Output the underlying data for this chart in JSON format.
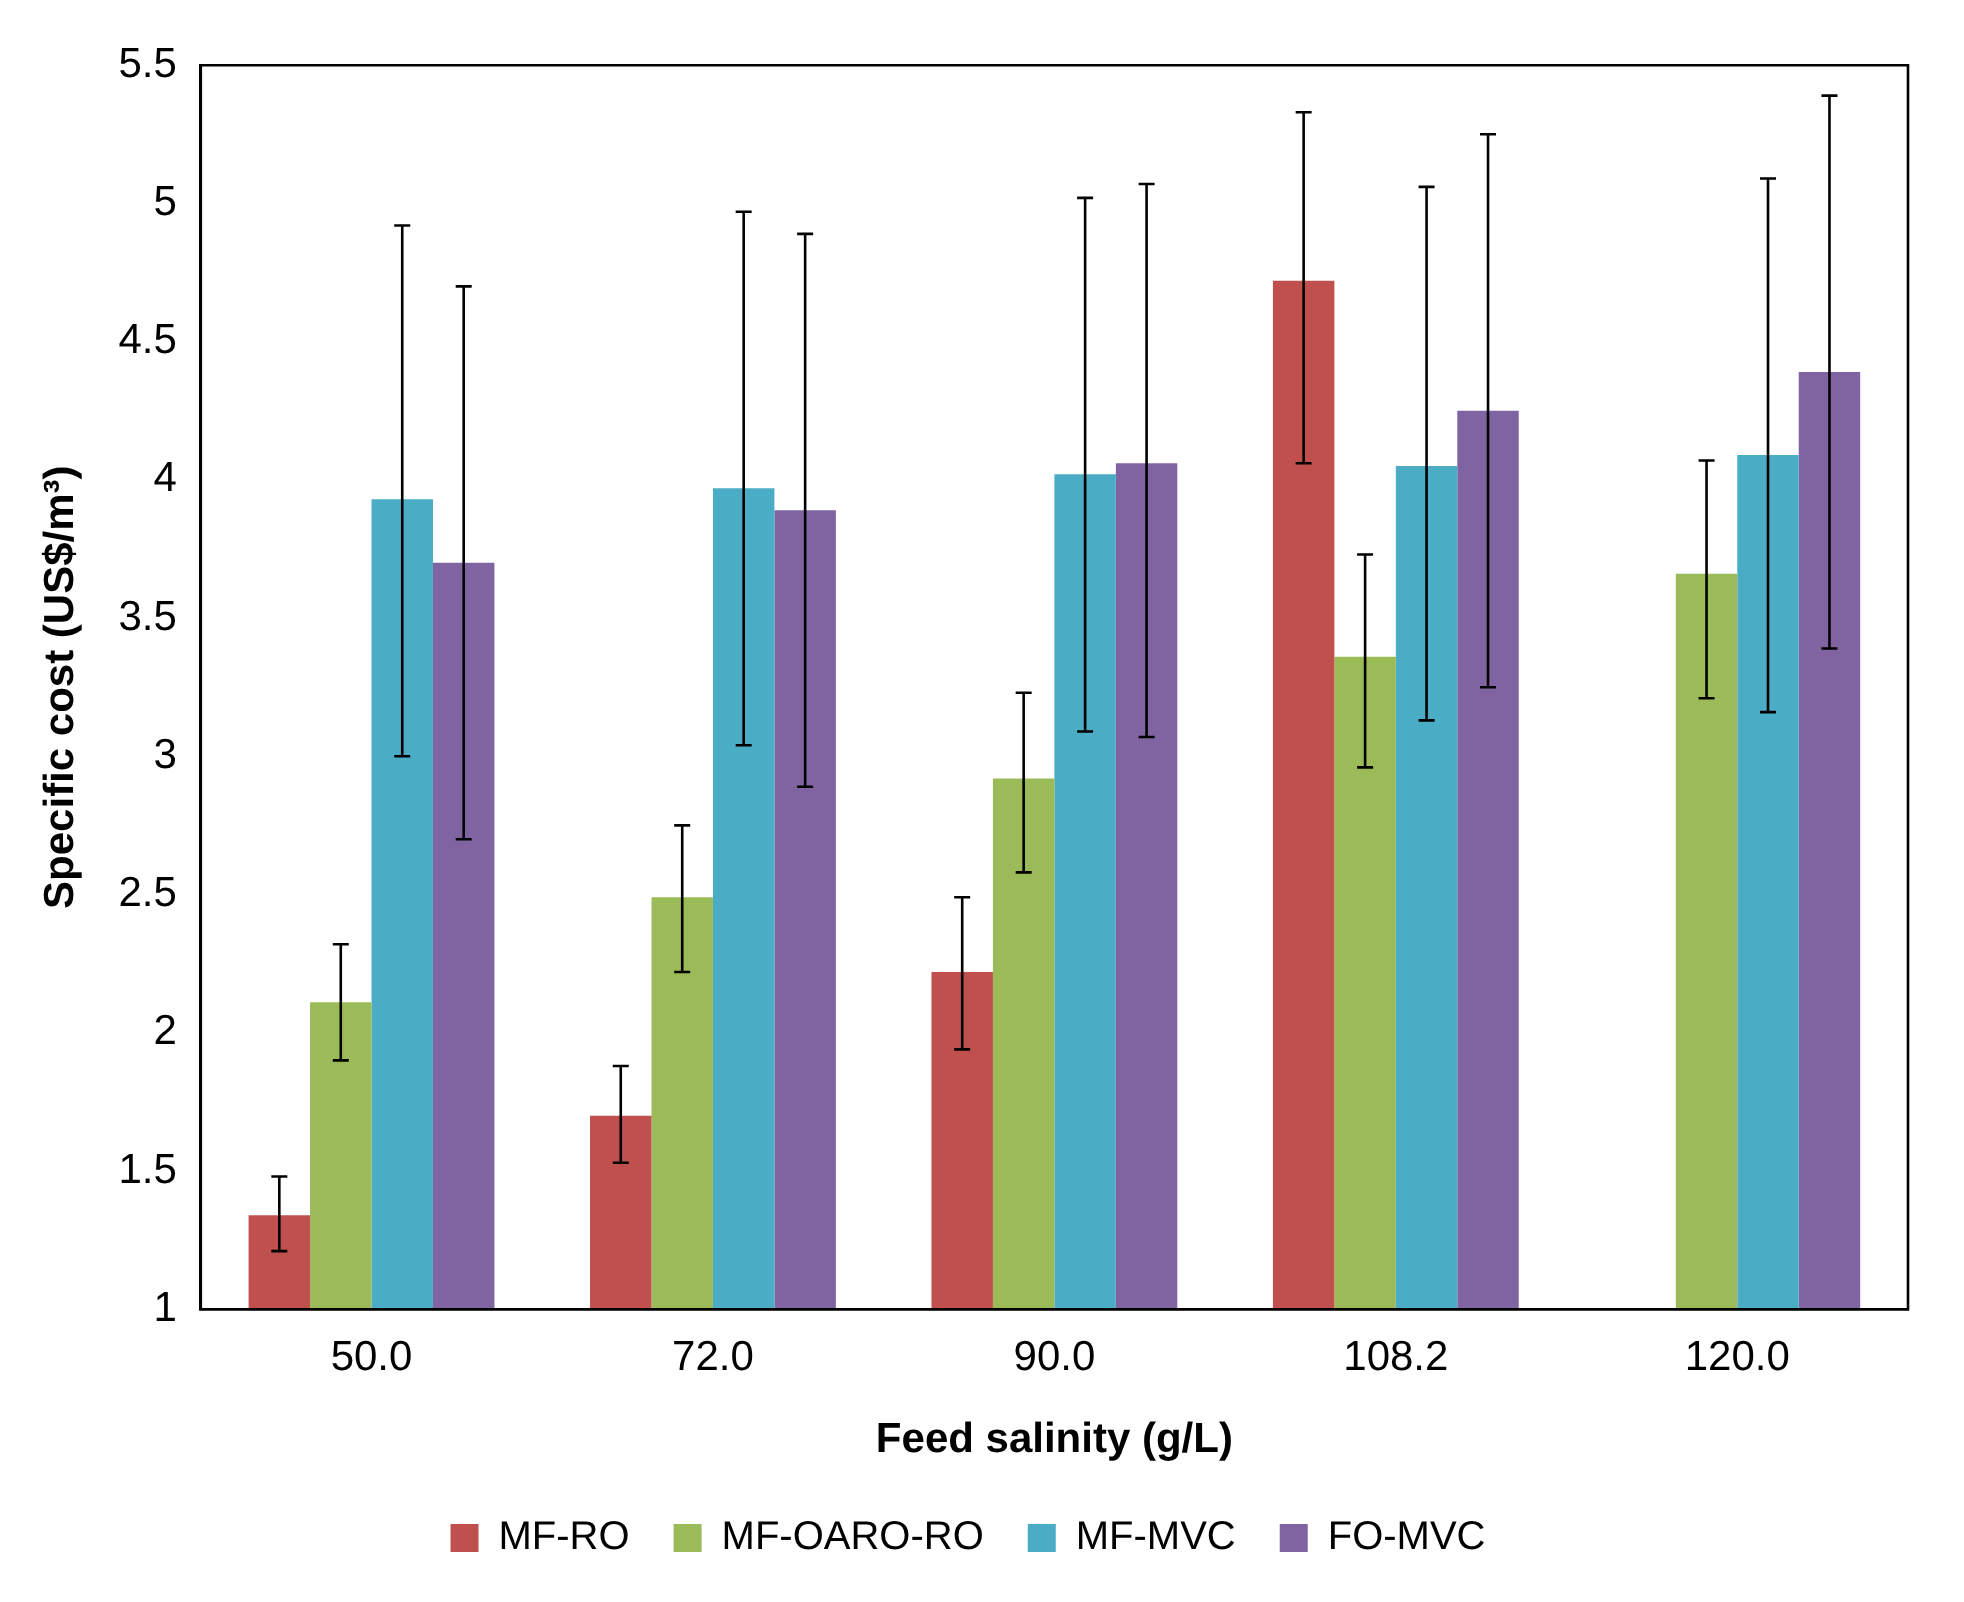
{
  "chart_data": {
    "type": "bar",
    "xlabel": "Feed salinity (g/L)",
    "ylabel": "Specific cost (US$/m³)",
    "categories": [
      "50.0",
      "72.0",
      "90.0",
      "108.2",
      "120.0"
    ],
    "series": [
      {
        "name": "MF-RO",
        "color": "#c0504d",
        "values": [
          1.34,
          1.7,
          2.22,
          4.72,
          null
        ],
        "errors": [
          [
            1.21,
            1.48
          ],
          [
            1.53,
            1.88
          ],
          [
            1.94,
            2.49
          ],
          [
            4.06,
            5.33
          ],
          null
        ]
      },
      {
        "name": "MF-OARO-RO",
        "color": "#9bbb59",
        "values": [
          2.11,
          2.49,
          2.92,
          3.36,
          3.66
        ],
        "errors": [
          [
            1.9,
            2.32
          ],
          [
            2.22,
            2.75
          ],
          [
            2.58,
            3.23
          ],
          [
            2.96,
            3.73
          ],
          [
            3.21,
            4.07
          ]
        ]
      },
      {
        "name": "MF-MVC",
        "color": "#4bacc6",
        "values": [
          3.93,
          3.97,
          4.02,
          4.05,
          4.09
        ],
        "errors": [
          [
            3.0,
            4.92
          ],
          [
            3.04,
            4.97
          ],
          [
            3.09,
            5.02
          ],
          [
            3.13,
            5.06
          ],
          [
            3.16,
            5.09
          ]
        ]
      },
      {
        "name": "FO-MVC",
        "color": "#8064a2",
        "values": [
          3.7,
          3.89,
          4.06,
          4.25,
          4.39
        ],
        "errors": [
          [
            2.7,
            4.7
          ],
          [
            2.89,
            4.89
          ],
          [
            3.07,
            5.07
          ],
          [
            3.25,
            5.25
          ],
          [
            3.39,
            5.39
          ]
        ]
      }
    ],
    "ylim": [
      1,
      5.5
    ],
    "yticks": [
      1,
      1.5,
      2,
      2.5,
      3,
      3.5,
      4,
      4.5,
      5,
      5.5
    ],
    "grid": false,
    "legend": "bottom"
  }
}
